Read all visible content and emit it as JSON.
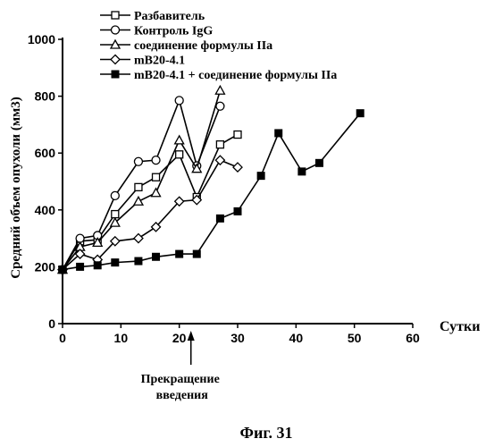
{
  "chart_data": {
    "type": "line",
    "xlabel": "Сутки",
    "ylabel": "Средний объем опухоли (мм3)",
    "xlim": [
      0,
      60
    ],
    "ylim": [
      0,
      1000
    ],
    "x_ticks": [
      "0",
      "10",
      "20",
      "30",
      "40",
      "50",
      "60"
    ],
    "y_ticks": [
      "0",
      "200",
      "400",
      "600",
      "800",
      "1000"
    ],
    "legend_position": "top-left",
    "grid": false,
    "annotation": "Прекращение введения",
    "annotation_x": 22,
    "caption": "Фиг. 31",
    "series": [
      {
        "name": "Разбавитель",
        "marker": "square-open",
        "x": [
          0,
          3,
          6,
          9,
          13,
          16,
          20,
          23,
          27,
          30
        ],
        "y": [
          190,
          290,
          295,
          385,
          480,
          515,
          595,
          445,
          630,
          665
        ]
      },
      {
        "name": "Контроль IgG",
        "marker": "circle-open",
        "x": [
          0,
          3,
          6,
          9,
          13,
          16,
          20,
          23,
          27
        ],
        "y": [
          190,
          300,
          310,
          450,
          570,
          575,
          785,
          555,
          765
        ]
      },
      {
        "name": "соединение формулы IIa",
        "marker": "triangle-open",
        "x": [
          0,
          3,
          6,
          9,
          13,
          16,
          20,
          23,
          27
        ],
        "y": [
          190,
          270,
          285,
          355,
          430,
          460,
          645,
          545,
          820
        ]
      },
      {
        "name": "mB20-4.1",
        "marker": "diamond-open",
        "x": [
          0,
          3,
          6,
          9,
          13,
          16,
          20,
          23,
          27,
          30
        ],
        "y": [
          190,
          245,
          225,
          290,
          300,
          340,
          430,
          435,
          575,
          550
        ]
      },
      {
        "name": "mB20-4.1 + соединение формулы IIa",
        "marker": "square-filled",
        "x": [
          0,
          3,
          6,
          9,
          13,
          16,
          20,
          23,
          27,
          30,
          34,
          37,
          41,
          44,
          51
        ],
        "y": [
          190,
          200,
          205,
          215,
          220,
          235,
          245,
          245,
          370,
          395,
          520,
          670,
          535,
          565,
          740
        ]
      }
    ]
  }
}
